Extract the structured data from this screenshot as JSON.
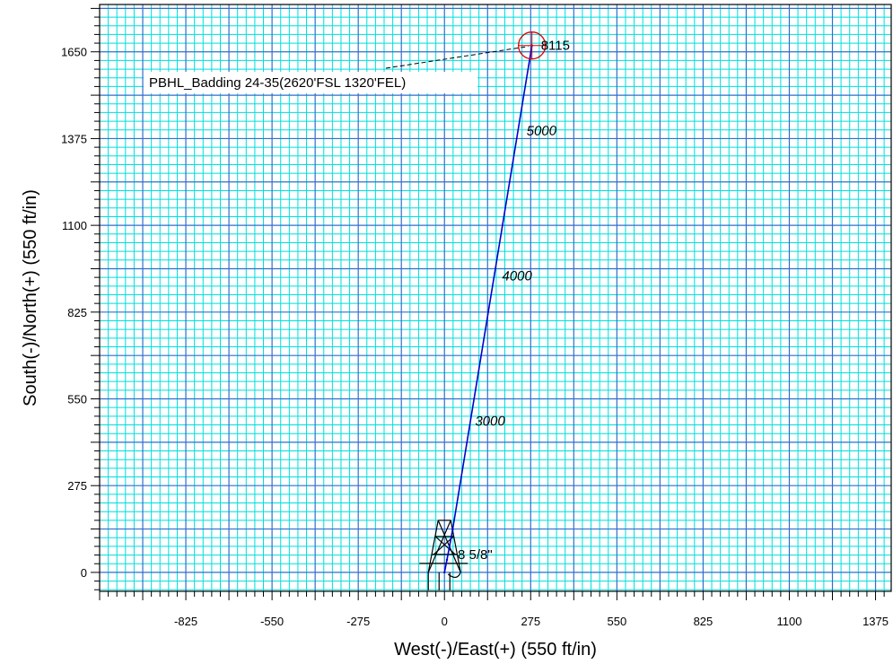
{
  "chart_data": {
    "type": "line",
    "xlabel": "West(-)/East(+) (550 ft/in)",
    "ylabel": "South(-)/North(+) (550 ft/in)",
    "xlim": [
      -1100,
      1425
    ],
    "ylim": [
      -60,
      1800
    ],
    "x_ticks": [
      -825,
      -550,
      -275,
      0,
      275,
      550,
      825,
      1100,
      1375
    ],
    "y_ticks": [
      0,
      275,
      550,
      825,
      1100,
      1375,
      1650
    ],
    "x_tick_labels": [
      "-825",
      "-550",
      "-275",
      "0",
      "275",
      "550",
      "825",
      "1100",
      "1375"
    ],
    "y_tick_labels": [
      "0",
      "275",
      "550",
      "825",
      "1100",
      "1375",
      "1650"
    ],
    "grid": true,
    "series": [
      {
        "color": "#0000cc",
        "points": [
          {
            "x": 0,
            "y": 0
          },
          {
            "x": 8,
            "y": 40
          },
          {
            "x": 26,
            "y": 135
          },
          {
            "x": 279,
            "y": 1670
          }
        ]
      }
    ],
    "depth_labels": [
      {
        "text": "3000",
        "x": 98,
        "y": 465
      },
      {
        "text": "4000",
        "x": 184,
        "y": 925
      },
      {
        "text": "5000",
        "x": 262,
        "y": 1385
      }
    ],
    "annotations": {
      "target_label": "PBHL_Badding 24-35(2620'FSL 1320'FEL)",
      "target": {
        "x": 279,
        "y": 1670
      },
      "td_label": "8115",
      "casing_label": "8 5/8\""
    },
    "colors": {
      "grid_minor": "#00dddd",
      "grid_major": "#2f6fcc",
      "well_path": "#0000cc",
      "target": "#dd0000"
    }
  }
}
